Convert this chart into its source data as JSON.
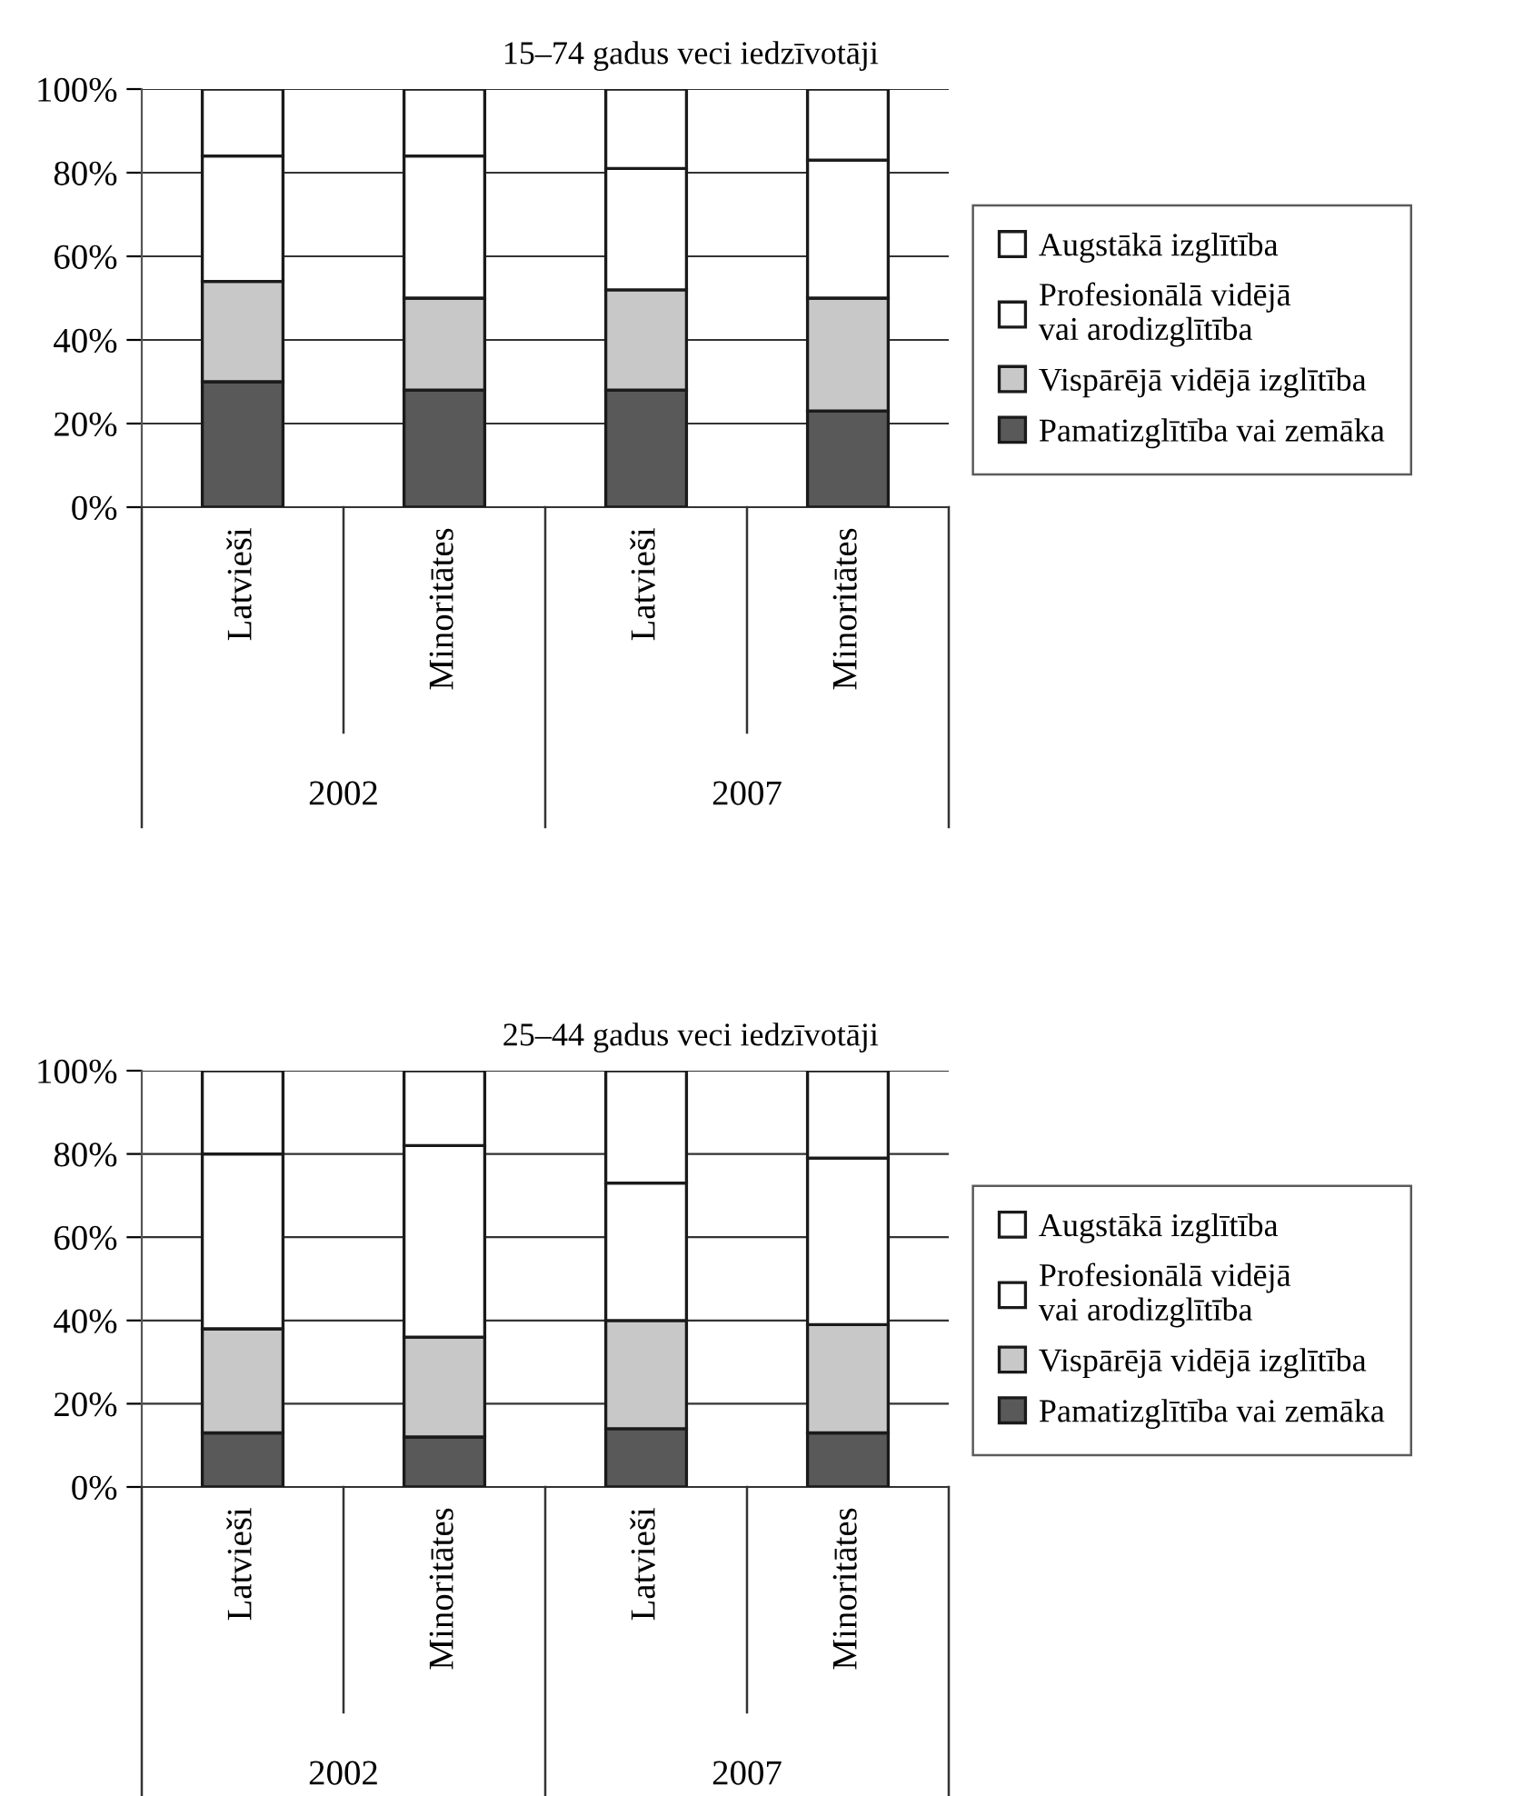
{
  "chart_data": [
    {
      "type": "bar",
      "title": "15–74 gadus veci iedzīvotāji",
      "stacked": true,
      "categories": [
        "Latvieši",
        "Minoritātes",
        "Latvieši",
        "Minoritātes"
      ],
      "annotations": [
        "2002",
        "2007"
      ],
      "ylim": [
        0,
        100
      ],
      "yticks": [
        {
          "value": 0,
          "label": "0%"
        },
        {
          "value": 20,
          "label": "20%"
        },
        {
          "value": 40,
          "label": "40%"
        },
        {
          "value": 60,
          "label": "60%"
        },
        {
          "value": 80,
          "label": "80%"
        },
        {
          "value": 100,
          "label": "100%"
        }
      ],
      "grid": "y",
      "legend": "right",
      "series": [
        {
          "name": "Pamatizglītība vai zemāka",
          "color": "#595959",
          "values": [
            30,
            28,
            28,
            23
          ]
        },
        {
          "name": "Vispārējā vidējā izglītība",
          "color": "#c8c8c8",
          "values": [
            24,
            22,
            24,
            27
          ]
        },
        {
          "name": "Profesionālā vidējā\nvai arodizglītība",
          "color": "#ffffff",
          "values": [
            30,
            34,
            29,
            33
          ]
        },
        {
          "name": "Augstākā izglītība",
          "color": "#ffffff",
          "values": [
            16,
            16,
            19,
            17
          ]
        }
      ]
    },
    {
      "type": "bar",
      "title": "25–44 gadus veci iedzīvotāji",
      "stacked": true,
      "categories": [
        "Latvieši",
        "Minoritātes",
        "Latvieši",
        "Minoritātes"
      ],
      "annotations": [
        "2002",
        "2007"
      ],
      "ylim": [
        0,
        100
      ],
      "yticks": [
        {
          "value": 0,
          "label": "0%"
        },
        {
          "value": 20,
          "label": "20%"
        },
        {
          "value": 40,
          "label": "40%"
        },
        {
          "value": 60,
          "label": "60%"
        },
        {
          "value": 80,
          "label": "80%"
        },
        {
          "value": 100,
          "label": "100%"
        }
      ],
      "grid": "y",
      "legend": "right",
      "series": [
        {
          "name": "Pamatizglītība vai zemāka",
          "color": "#595959",
          "values": [
            13,
            12,
            14,
            13
          ]
        },
        {
          "name": "Vispārējā vidējā izglītība",
          "color": "#c8c8c8",
          "values": [
            25,
            24,
            26,
            26
          ]
        },
        {
          "name": "Profesionālā vidējā\nvai arodizglītība",
          "color": "#ffffff",
          "values": [
            42,
            46,
            33,
            40
          ]
        },
        {
          "name": "Augstākā izglītība",
          "color": "#ffffff",
          "values": [
            20,
            18,
            27,
            21
          ]
        }
      ]
    }
  ]
}
